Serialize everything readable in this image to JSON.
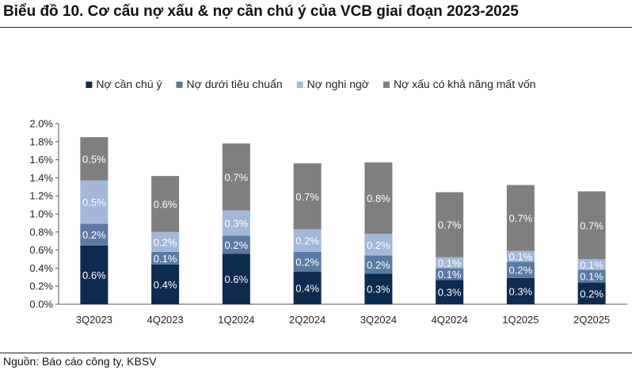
{
  "title": "Biểu đồ 10. Cơ cấu nợ xấu & nợ cần chú ý của VCB giai đoạn 2023-2025",
  "source": "Nguồn: Báo cáo công ty, KBSV",
  "chart_data": {
    "type": "bar",
    "stacked": true,
    "categories": [
      "3Q2023",
      "4Q2023",
      "1Q2024",
      "2Q2024",
      "3Q2024",
      "4Q2024",
      "1Q2025",
      "2Q2025"
    ],
    "series": [
      {
        "name": "Nợ cần chú ý",
        "color": "#0d2a4f",
        "label_color": "#ffffff",
        "values": [
          0.65,
          0.44,
          0.56,
          0.36,
          0.34,
          0.27,
          0.29,
          0.24
        ],
        "labels": [
          "0.6%",
          "0.4%",
          "0.6%",
          "0.4%",
          "0.3%",
          "0.3%",
          "0.3%",
          "0.2%"
        ]
      },
      {
        "name": "Nợ dưới tiêu chuẩn",
        "color": "#5b7aa3",
        "label_color": "#ffffff",
        "values": [
          0.24,
          0.14,
          0.2,
          0.22,
          0.2,
          0.13,
          0.18,
          0.14
        ],
        "labels": [
          "0.2%",
          "0.1%",
          "0.2%",
          "0.2%",
          "0.2%",
          "0.1%",
          "0.2%",
          "0.1%"
        ]
      },
      {
        "name": "Nợ nghi ngờ",
        "color": "#a3b8d8",
        "label_color": "#ffffff",
        "values": [
          0.48,
          0.22,
          0.28,
          0.25,
          0.24,
          0.12,
          0.12,
          0.12
        ],
        "labels": [
          "0.5%",
          "0.2%",
          "0.3%",
          "0.2%",
          "0.2%",
          "0.1%",
          "0.1%",
          "0.1%"
        ]
      },
      {
        "name": "Nợ xấu có khả năng mất vốn",
        "color": "#7f7f7f",
        "label_color": "#ffffff",
        "values": [
          0.48,
          0.62,
          0.74,
          0.73,
          0.79,
          0.72,
          0.73,
          0.75
        ],
        "labels": [
          "0.5%",
          "0.6%",
          "0.7%",
          "0.7%",
          "0.8%",
          "0.7%",
          "0.7%",
          "0.7%"
        ]
      }
    ],
    "ylim": [
      0,
      2.0
    ],
    "yticks": [
      0,
      0.2,
      0.4,
      0.6,
      0.8,
      1.0,
      1.2,
      1.4,
      1.6,
      1.8,
      2.0
    ],
    "ytick_labels": [
      "0.0%",
      "0.2%",
      "0.4%",
      "0.6%",
      "0.8%",
      "1.0%",
      "1.2%",
      "1.4%",
      "1.6%",
      "1.8%",
      "2.0%"
    ],
    "xlabel": "",
    "ylabel": "",
    "legend_position": "top-center",
    "grid": false
  }
}
